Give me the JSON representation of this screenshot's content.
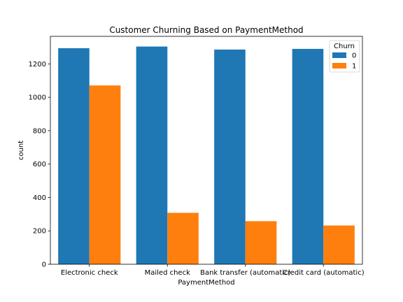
{
  "chart_data": {
    "type": "bar",
    "title": "Customer Churning Based on PaymentMethod",
    "xlabel": "PaymentMethod",
    "ylabel": "count",
    "categories": [
      "Electronic check",
      "Mailed check",
      "Bank transfer (automatic)",
      "Credit card (automatic)"
    ],
    "series": [
      {
        "name": "0",
        "values": [
          1294,
          1304,
          1286,
          1290
        ],
        "color": "#1f77b4"
      },
      {
        "name": "1",
        "values": [
          1071,
          308,
          258,
          232
        ],
        "color": "#ff7f0e"
      }
    ],
    "ylim": [
      0,
      1365
    ],
    "yticks": [
      0,
      200,
      400,
      600,
      800,
      1000,
      1200
    ],
    "legend": {
      "title": "Churn",
      "placement": "top-right"
    },
    "grid": false
  }
}
